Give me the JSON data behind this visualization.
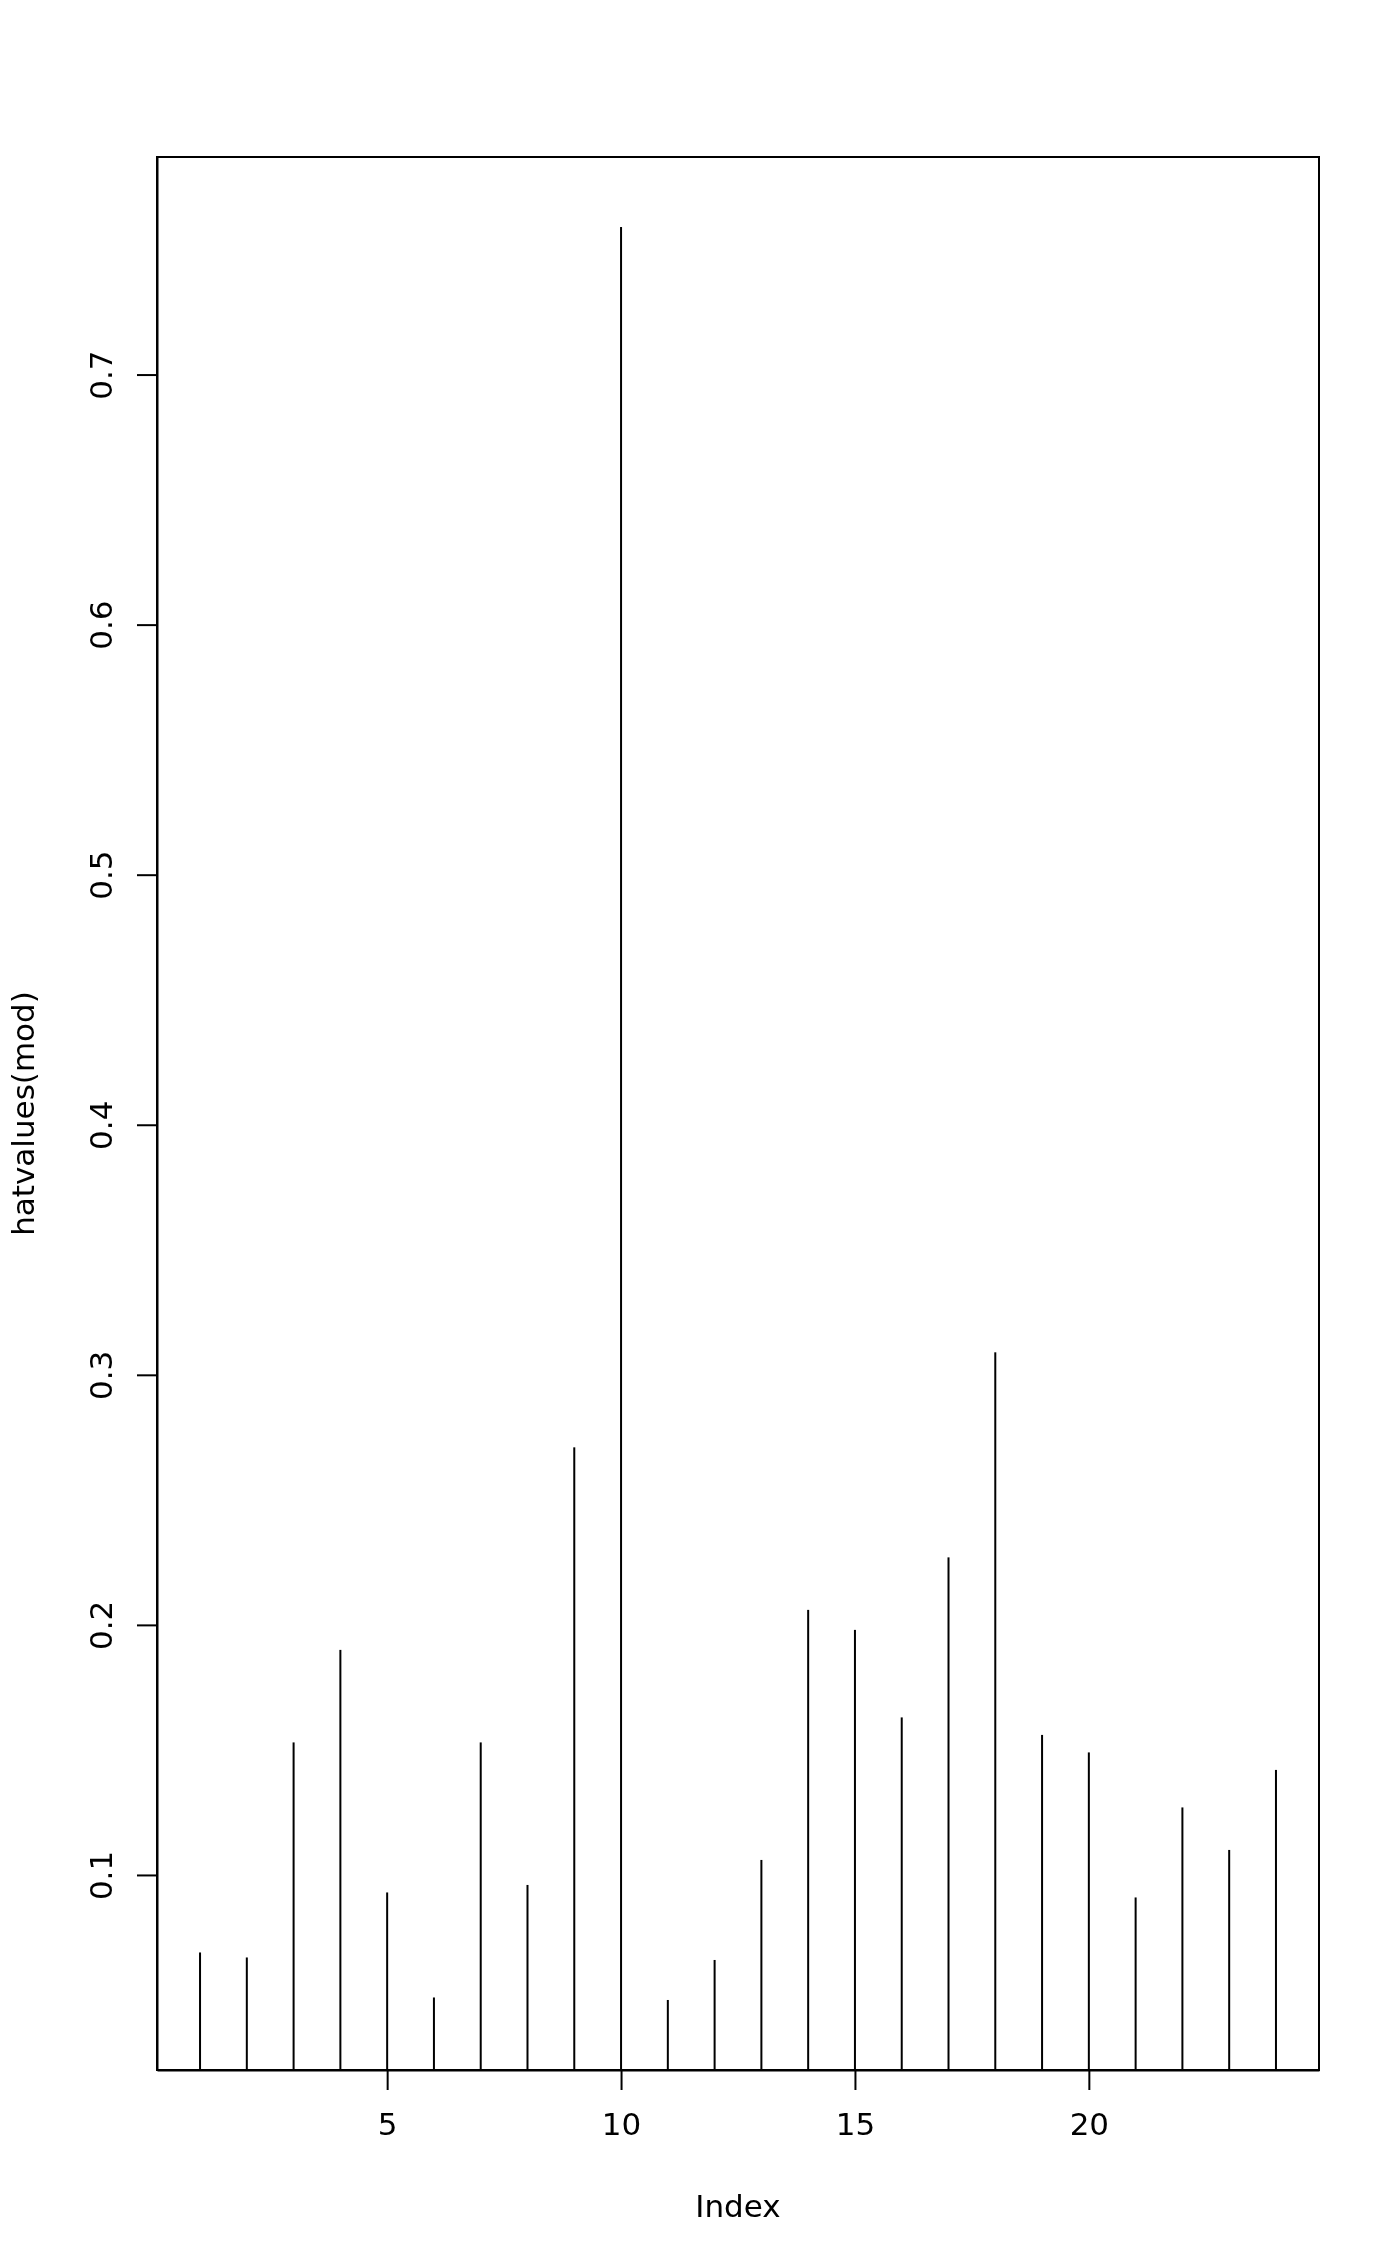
{
  "chart_data": {
    "type": "bar",
    "xlabel": "Index",
    "ylabel": "hatvalues(mod)",
    "x": [
      1,
      2,
      3,
      4,
      5,
      6,
      7,
      8,
      9,
      10,
      11,
      12,
      13,
      14,
      15,
      16,
      17,
      18,
      19,
      20,
      21,
      22,
      23,
      24
    ],
    "values": [
      0.069,
      0.067,
      0.153,
      0.19,
      0.093,
      0.051,
      0.153,
      0.096,
      0.271,
      0.759,
      0.05,
      0.066,
      0.106,
      0.206,
      0.198,
      0.163,
      0.227,
      0.309,
      0.156,
      0.149,
      0.091,
      0.127,
      0.11,
      0.142
    ],
    "color": "#000000",
    "xlim": [
      0.08,
      24.92
    ],
    "xticks": [
      5,
      10,
      15,
      20
    ],
    "ylim": [
      0.022,
      0.787
    ],
    "yticks": [
      0.1,
      0.2,
      0.3,
      0.4,
      0.5,
      0.6,
      0.7
    ]
  }
}
